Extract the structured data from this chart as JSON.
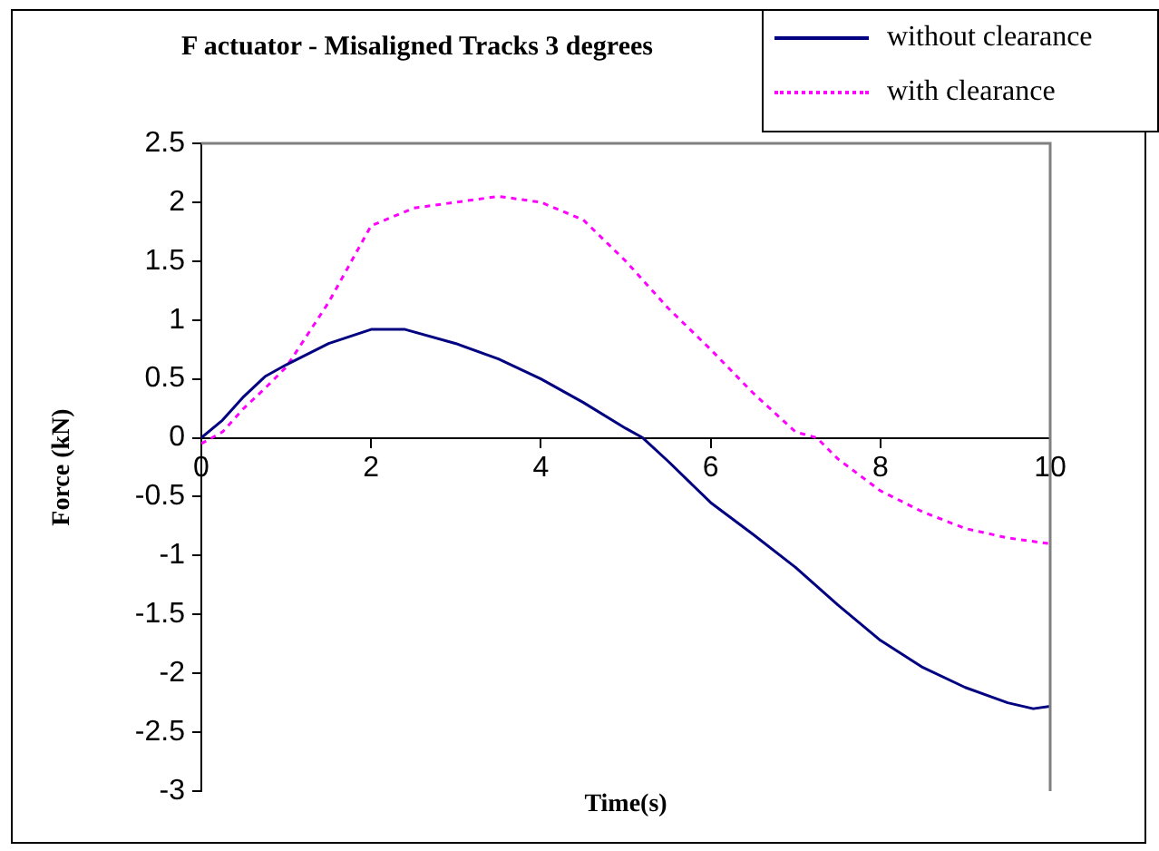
{
  "chart_data": {
    "type": "line",
    "title": "F actuator - Misaligned Tracks 3 degrees",
    "xlabel": "Time(s)",
    "ylabel": "Force (kN)",
    "xlim": [
      0,
      10
    ],
    "xticks": [
      0,
      2,
      4,
      6,
      8,
      10
    ],
    "ylim": [
      -3,
      2.5
    ],
    "yticks": [
      -3,
      -2.5,
      -2,
      -1.5,
      -1,
      -0.5,
      0,
      0.5,
      1,
      1.5,
      2,
      2.5
    ],
    "grid": false,
    "legend": "top right",
    "marker": "none",
    "series": [
      {
        "name": "without clearance",
        "color": "#000080",
        "line_style": "solid",
        "x": [
          0,
          0.25,
          0.5,
          0.75,
          1,
          1.5,
          2,
          2.4,
          3,
          3.5,
          4,
          4.5,
          5,
          5.2,
          5.5,
          6,
          6.5,
          7,
          7.5,
          8,
          8.5,
          9,
          9.5,
          9.8,
          10
        ],
        "values": [
          0,
          0.15,
          0.35,
          0.52,
          0.62,
          0.8,
          0.92,
          0.92,
          0.8,
          0.67,
          0.5,
          0.3,
          0.08,
          0,
          -0.2,
          -0.55,
          -0.82,
          -1.1,
          -1.42,
          -1.72,
          -1.95,
          -2.12,
          -2.25,
          -2.3,
          -2.28
        ]
      },
      {
        "name": "with clearance",
        "color": "#ff00ff",
        "line_style": "dotted",
        "x": [
          0,
          0.25,
          0.5,
          0.75,
          1,
          1.5,
          2,
          2.5,
          3,
          3.5,
          4,
          4.5,
          5,
          5.5,
          6,
          6.5,
          7,
          7.25,
          7.5,
          8,
          8.5,
          9,
          9.5,
          10
        ],
        "values": [
          -0.05,
          0.05,
          0.25,
          0.42,
          0.6,
          1.15,
          1.8,
          1.95,
          2.0,
          2.05,
          2.0,
          1.85,
          1.5,
          1.1,
          0.75,
          0.38,
          0.05,
          0,
          -0.18,
          -0.45,
          -0.63,
          -0.77,
          -0.85,
          -0.9
        ]
      }
    ]
  }
}
